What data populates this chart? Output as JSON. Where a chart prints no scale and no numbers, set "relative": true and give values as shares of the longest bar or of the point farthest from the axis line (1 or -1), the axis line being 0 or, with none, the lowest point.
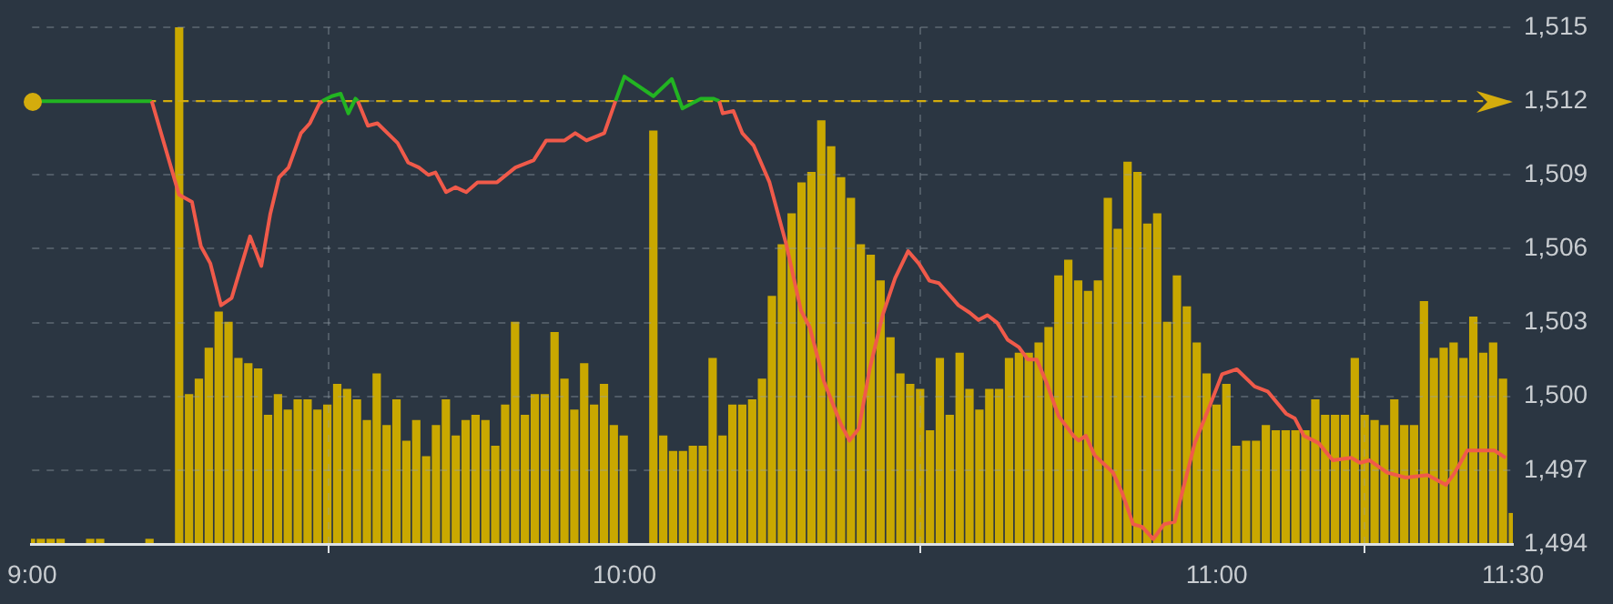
{
  "chart_data": [
    {
      "type": "bar",
      "relative": true,
      "xlim": [
        9,
        11.5
      ],
      "color": "#c9a800",
      "x": [
        9,
        9.0167,
        9.0333,
        9.05,
        9.1,
        9.1167,
        9.2,
        9.25,
        9.2667,
        9.2833,
        9.3,
        9.3167,
        9.3333,
        9.35,
        9.3667,
        9.3833,
        9.4,
        9.4167,
        9.4333,
        9.45,
        9.4667,
        9.4833,
        9.5,
        9.5167,
        9.5333,
        9.55,
        9.5667,
        9.5833,
        9.6,
        9.6167,
        9.6333,
        9.65,
        9.6667,
        9.6833,
        9.7,
        9.7167,
        9.7333,
        9.75,
        9.7667,
        9.7833,
        9.8,
        9.8167,
        9.8333,
        9.85,
        9.8667,
        9.8833,
        9.9,
        9.9167,
        9.9333,
        9.95,
        9.9667,
        9.9833,
        10,
        10.05,
        10.0667,
        10.0833,
        10.1,
        10.1167,
        10.1333,
        10.15,
        10.1667,
        10.1833,
        10.2,
        10.2167,
        10.2333,
        10.25,
        10.2667,
        10.2833,
        10.3,
        10.3167,
        10.3333,
        10.35,
        10.3667,
        10.3833,
        10.4,
        10.4167,
        10.4333,
        10.45,
        10.4667,
        10.4833,
        10.5,
        10.5167,
        10.5333,
        10.55,
        10.5667,
        10.5833,
        10.6,
        10.6167,
        10.6333,
        10.65,
        10.6667,
        10.6833,
        10.7,
        10.7167,
        10.7333,
        10.75,
        10.7667,
        10.7833,
        10.8,
        10.8167,
        10.8333,
        10.85,
        10.8667,
        10.8833,
        10.9,
        10.9167,
        10.9333,
        10.95,
        10.9667,
        10.9833,
        11,
        11.0167,
        11.0333,
        11.05,
        11.0667,
        11.0833,
        11.1,
        11.1167,
        11.1333,
        11.15,
        11.1667,
        11.1833,
        11.2,
        11.2167,
        11.2333,
        11.25,
        11.2667,
        11.2833,
        11.3,
        11.3167,
        11.3333,
        11.35,
        11.3667,
        11.3833,
        11.4,
        11.4167,
        11.4333,
        11.45,
        11.4667,
        11.4833,
        11.5
      ],
      "values": [
        0.01,
        0.01,
        0.01,
        0.01,
        0.01,
        0.01,
        0.01,
        1.0,
        0.29,
        0.32,
        0.38,
        0.45,
        0.43,
        0.36,
        0.35,
        0.34,
        0.25,
        0.29,
        0.26,
        0.28,
        0.28,
        0.26,
        0.27,
        0.31,
        0.3,
        0.28,
        0.24,
        0.33,
        0.23,
        0.28,
        0.2,
        0.24,
        0.17,
        0.23,
        0.28,
        0.21,
        0.24,
        0.25,
        0.24,
        0.19,
        0.27,
        0.43,
        0.25,
        0.29,
        0.29,
        0.41,
        0.32,
        0.26,
        0.35,
        0.27,
        0.31,
        0.23,
        0.21,
        0.8,
        0.21,
        0.18,
        0.18,
        0.19,
        0.19,
        0.36,
        0.21,
        0.27,
        0.27,
        0.28,
        0.32,
        0.48,
        0.58,
        0.64,
        0.7,
        0.72,
        0.82,
        0.77,
        0.71,
        0.67,
        0.58,
        0.56,
        0.51,
        0.4,
        0.33,
        0.31,
        0.3,
        0.22,
        0.36,
        0.25,
        0.37,
        0.3,
        0.26,
        0.3,
        0.3,
        0.36,
        0.37,
        0.37,
        0.39,
        0.42,
        0.52,
        0.55,
        0.51,
        0.49,
        0.51,
        0.67,
        0.61,
        0.74,
        0.72,
        0.62,
        0.64,
        0.43,
        0.52,
        0.46,
        0.39,
        0.33,
        0.27,
        0.31,
        0.19,
        0.2,
        0.2,
        0.23,
        0.22,
        0.22,
        0.22,
        0.22,
        0.28,
        0.25,
        0.25,
        0.25,
        0.36,
        0.25,
        0.24,
        0.23,
        0.28,
        0.23,
        0.23,
        0.47,
        0.36,
        0.38,
        0.39,
        0.36,
        0.44,
        0.37,
        0.39,
        0.32,
        0.06
      ]
    },
    {
      "type": "line",
      "xlim": [
        9,
        11.5
      ],
      "xticks": [
        {
          "value": 9,
          "label": "9:00"
        },
        {
          "value": 10,
          "label": "10:00"
        },
        {
          "value": 11,
          "label": "11:00"
        },
        {
          "value": 11.5,
          "label": "11:30"
        }
      ],
      "ylim": [
        1494,
        1515
      ],
      "yticks": [
        {
          "value": 1494,
          "label": "1,494"
        },
        {
          "value": 1497,
          "label": "1,497"
        },
        {
          "value": 1500,
          "label": "1,500"
        },
        {
          "value": 1503,
          "label": "1,503"
        },
        {
          "value": 1506,
          "label": "1,506"
        },
        {
          "value": 1509,
          "label": "1,509"
        },
        {
          "value": 1512,
          "label": "1,512"
        },
        {
          "value": 1515,
          "label": "1,515"
        }
      ],
      "grid": true,
      "legend": false,
      "marker": "none",
      "line_style": "solid",
      "ref_lines": [
        {
          "axis": "y",
          "value": 1512,
          "color": "#d4ac0d",
          "line_style": "dashed"
        }
      ],
      "series": [
        {
          "color": "#f05a4a",
          "x": [
            9.202,
            9.248,
            9.27,
            9.285,
            9.301,
            9.319,
            9.337,
            9.368,
            9.387,
            9.402,
            9.417,
            9.433,
            9.454,
            9.469,
            9.485,
            9.49,
            9.5,
            9.55,
            9.567,
            9.583,
            9.617,
            9.635,
            9.653,
            9.669,
            9.681,
            9.699,
            9.715,
            9.733,
            9.752,
            9.785,
            9.816,
            9.847,
            9.868,
            9.899,
            9.917,
            9.936,
            9.966,
            9.985,
            9.99,
            10.16,
            10.166,
            10.184,
            10.199,
            10.218,
            10.245,
            10.273,
            10.298,
            10.313,
            10.337,
            10.365,
            10.38,
            10.396,
            10.414,
            10.436,
            10.457,
            10.479,
            10.497,
            10.515,
            10.531,
            10.564,
            10.583,
            10.598,
            10.613,
            10.629,
            10.647,
            10.666,
            10.681,
            10.696,
            10.712,
            10.733,
            10.758,
            10.767,
            10.779,
            10.794,
            10.825,
            10.84,
            10.859,
            10.874,
            10.893,
            10.911,
            10.929,
            10.963,
            10.988,
            11.009,
            11.034,
            11.064,
            11.086,
            11.117,
            11.132,
            11.147,
            11.172,
            11.196,
            11.227,
            11.242,
            11.258,
            11.288,
            11.319,
            11.356,
            11.387,
            11.402,
            11.423,
            11.469,
            11.488
          ],
          "values": [
            1512,
            1508.2,
            1507.9,
            1506.1,
            1505.4,
            1503.7,
            1504.0,
            1506.5,
            1505.3,
            1507.4,
            1508.9,
            1509.3,
            1510.7,
            1511.1,
            1511.9,
            1512,
            null,
            1512,
            1511.0,
            1511.1,
            1510.3,
            1509.5,
            1509.3,
            1509.0,
            1509.1,
            1508.3,
            1508.5,
            1508.3,
            1508.7,
            1508.7,
            1509.3,
            1509.6,
            1510.4,
            1510.4,
            1510.7,
            1510.4,
            1510.7,
            1512,
            null,
            1512,
            1511.5,
            1511.6,
            1510.7,
            1510.2,
            1508.7,
            1506.2,
            1503.5,
            1502.8,
            1500.6,
            1498.9,
            1498.2,
            1498.7,
            1501.1,
            1503.3,
            1504.8,
            1505.9,
            1505.4,
            1504.7,
            1504.6,
            1503.7,
            1503.4,
            1503.1,
            1503.3,
            1503.0,
            1502.3,
            1502.0,
            1501.5,
            1501.5,
            1500.6,
            1499.2,
            1498.4,
            1498.2,
            1498.4,
            1497.6,
            1496.9,
            1496.1,
            1494.8,
            1494.7,
            1494.2,
            1494.8,
            1494.9,
            1498.1,
            1499.6,
            1500.9,
            1501.1,
            1500.4,
            1500.2,
            1499.3,
            1499.1,
            1498.4,
            1498.1,
            1497.4,
            1497.5,
            1497.3,
            1497.4,
            1496.9,
            1496.7,
            1496.8,
            1496.4,
            1496.9,
            1497.8,
            1497.8,
            1497.5
          ]
        },
        {
          "color": "#22b422",
          "x": [
            9,
            9.202,
            9.21,
            9.49,
            9.506,
            9.521,
            9.534,
            9.546,
            9.55,
            9.56,
            9.985,
            10,
            10.049,
            10.08,
            10.098,
            10.129,
            10.15,
            10.16
          ],
          "values": [
            1512,
            1512,
            null,
            1512,
            1512.2,
            1512.3,
            1511.5,
            1512.1,
            1512,
            null,
            1512,
            1513.0,
            1512.2,
            1512.9,
            1511.7,
            1512.1,
            1512.1,
            1512
          ]
        }
      ]
    }
  ]
}
